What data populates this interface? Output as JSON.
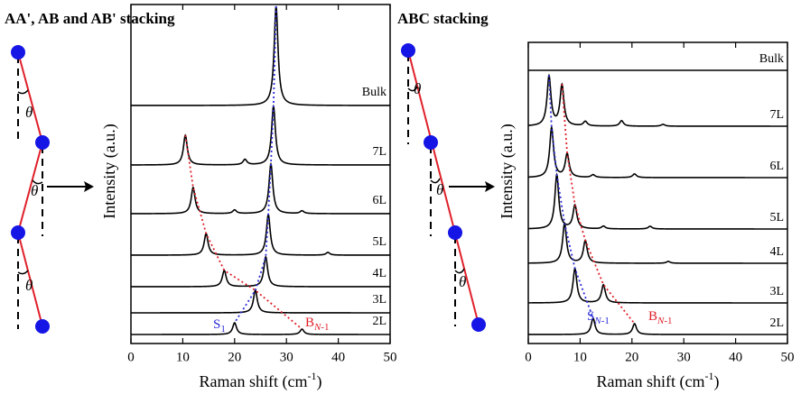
{
  "chart_data": [
    {
      "type": "spectra",
      "title": "AA', AB and AB' stacking",
      "xlabel": {
        "base": "Raman shift (cm",
        "superscript": "-1",
        "close": ")"
      },
      "ylabel": "Intensity (a.u.)",
      "xlim": [
        0,
        50
      ],
      "xticks": [
        0,
        10,
        20,
        30,
        40,
        50
      ],
      "grid": false,
      "series": [
        {
          "name": "Bulk",
          "peaks": [
            28
          ],
          "intensities": [
            11
          ]
        },
        {
          "name": "7L",
          "peaks": [
            10.5,
            22,
            27.5
          ],
          "intensities": [
            3.3,
            0.6,
            6.5
          ]
        },
        {
          "name": "6L",
          "peaks": [
            12,
            20,
            27,
            33
          ],
          "intensities": [
            2.9,
            0.4,
            5.5,
            0.3
          ]
        },
        {
          "name": "5L",
          "peaks": [
            14.5,
            26.5,
            38
          ],
          "intensities": [
            2.4,
            4.5,
            0.3
          ]
        },
        {
          "name": "4L",
          "peaks": [
            18,
            26
          ],
          "intensities": [
            1.8,
            3.3
          ]
        },
        {
          "name": "3L",
          "peaks": [
            24
          ],
          "intensities": [
            2.5
          ]
        },
        {
          "name": "2L",
          "peaks": [
            20,
            33
          ],
          "intensities": [
            1.3,
            0.6
          ]
        }
      ],
      "fans": [
        {
          "label": {
            "base": "S",
            "sub": "1"
          },
          "color": "#2a2ad8",
          "values": [
            28,
            27.5,
            27,
            26.5,
            26,
            24,
            20
          ]
        },
        {
          "label": {
            "base": "B",
            "sub_italic": "N",
            "sub": "-1"
          },
          "color": "#e0202a",
          "values": [
            null,
            10.5,
            12,
            14.5,
            18,
            24,
            33
          ]
        }
      ]
    },
    {
      "type": "spectra",
      "title": "ABC stacking",
      "xlabel": {
        "base": "Raman shift (cm",
        "superscript": "-1",
        "close": ")"
      },
      "ylabel": "Intensity (a.u.)",
      "xlim": [
        0,
        50
      ],
      "xticks": [
        0,
        10,
        20,
        30,
        40,
        50
      ],
      "grid": false,
      "series": [
        {
          "name": "Bulk",
          "peaks": [],
          "intensities": []
        },
        {
          "name": "7L",
          "peaks": [
            4,
            6.5,
            11,
            18,
            26
          ],
          "intensities": [
            5.5,
            4.5,
            0.5,
            0.6,
            0.2
          ]
        },
        {
          "name": "6L",
          "peaks": [
            4.5,
            7.5,
            12.5,
            20.5
          ],
          "intensities": [
            5.5,
            2.6,
            0.3,
            0.4
          ]
        },
        {
          "name": "5L",
          "peaks": [
            5.5,
            9,
            14.5,
            23.5
          ],
          "intensities": [
            6,
            2.6,
            0.3,
            0.3
          ]
        },
        {
          "name": "4L",
          "peaks": [
            7,
            11,
            27
          ],
          "intensities": [
            4.4,
            2.5,
            0.2
          ]
        },
        {
          "name": "3L",
          "peaks": [
            9,
            14.5
          ],
          "intensities": [
            3.8,
            2
          ]
        },
        {
          "name": "2L",
          "peaks": [
            12.5,
            20.5
          ],
          "intensities": [
            1.8,
            1.2
          ]
        }
      ],
      "fans": [
        {
          "label": {
            "base": "S",
            "sub_italic": "N",
            "sub": "-1"
          },
          "color": "#2a2ad8",
          "values": [
            null,
            4,
            4.5,
            5.5,
            7,
            9,
            12.5
          ]
        },
        {
          "label": {
            "base": "B",
            "sub_italic": "N",
            "sub": "-1"
          },
          "color": "#e0202a",
          "values": [
            null,
            6.5,
            7.5,
            9,
            11,
            14.5,
            20.5
          ]
        }
      ]
    }
  ],
  "diagram": {
    "theta": "θ"
  }
}
